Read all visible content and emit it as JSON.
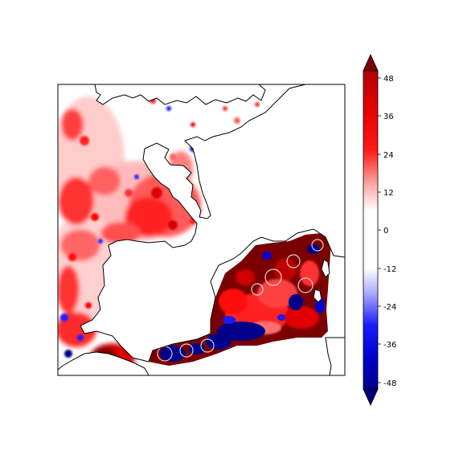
{
  "map": {
    "region": "Western Europe / North Atlantic coastal seas",
    "land_color": "#ffffff",
    "coastline_color": "#000000"
  },
  "colorbar": {
    "colormap": "seismic",
    "vmin": -48,
    "vmax": 48,
    "extend": "both",
    "tick_labels": [
      "48",
      "36",
      "24",
      "12",
      "0",
      "-12",
      "-24",
      "-36",
      "-48"
    ],
    "low_color": "#00007a",
    "high_color": "#7a0000",
    "neutral_color": "#ffffff"
  }
}
